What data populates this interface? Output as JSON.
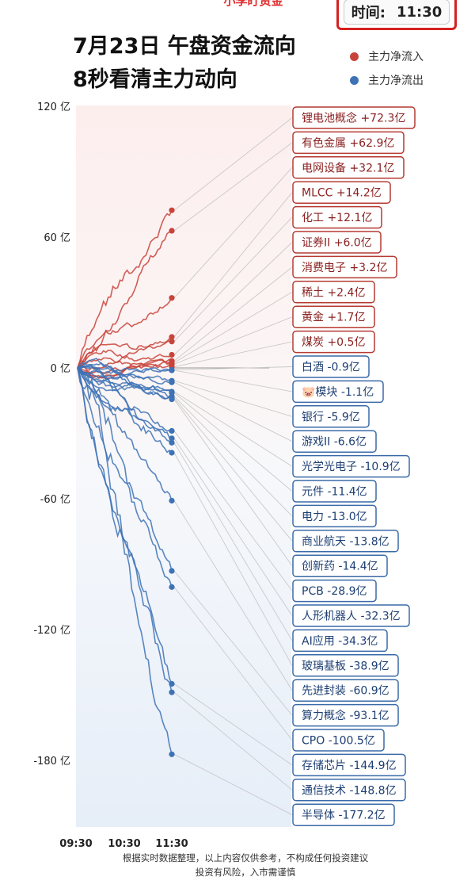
{
  "header": {
    "top_title": "小李盯资金",
    "time_label": "时间:",
    "time_value": "11:30",
    "title_line1": "7月23日 午盘资金流向",
    "title_line2": "8秒看清主力动向"
  },
  "legend": {
    "inflow_label": "主力净流入",
    "outflow_label": "主力净流出",
    "inflow_color": "#c8433a",
    "outflow_color": "#3d72b5"
  },
  "footnote": {
    "line1": "根据实时数据整理，以上内容仅供参考，不构成任何投资建议",
    "line2": "投资有风险，入市需谨慎"
  },
  "chart_data": {
    "type": "line",
    "unit": "亿",
    "x_ticks": [
      "09:30",
      "10:30",
      "11:30"
    ],
    "y_ticks": [
      "120 亿",
      "60 亿",
      "0 亿",
      "-60 亿",
      "-120 亿",
      "-180 亿"
    ],
    "ylim": [
      -180,
      120
    ],
    "series": [
      {
        "name": "锂电池概念",
        "value": 72.3,
        "label": "锂电池概念 +72.3亿"
      },
      {
        "name": "有色金属",
        "value": 62.9,
        "label": "有色金属 +62.9亿"
      },
      {
        "name": "电网设备",
        "value": 32.1,
        "label": "电网设备 +32.1亿"
      },
      {
        "name": "MLCC",
        "value": 14.2,
        "label": "MLCC +14.2亿"
      },
      {
        "name": "化工",
        "value": 12.1,
        "label": "化工 +12.1亿"
      },
      {
        "name": "证券II",
        "value": 6.0,
        "label": "证券II +6.0亿"
      },
      {
        "name": "消费电子",
        "value": 3.2,
        "label": "消费电子 +3.2亿"
      },
      {
        "name": "稀土",
        "value": 2.4,
        "label": "稀土 +2.4亿"
      },
      {
        "name": "黄金",
        "value": 1.7,
        "label": "黄金 +1.7亿"
      },
      {
        "name": "煤炭",
        "value": 0.5,
        "label": "煤炭 +0.5亿"
      },
      {
        "name": "白酒",
        "value": -0.9,
        "label": "白酒 -0.9亿"
      },
      {
        "name": "模块",
        "value": -1.1,
        "label": "🐷模块 -1.1亿"
      },
      {
        "name": "银行",
        "value": -5.9,
        "label": "银行 -5.9亿"
      },
      {
        "name": "游戏II",
        "value": -6.6,
        "label": "游戏II -6.6亿"
      },
      {
        "name": "光学光电子",
        "value": -10.9,
        "label": "光学光电子 -10.9亿"
      },
      {
        "name": "元件",
        "value": -11.4,
        "label": "元件 -11.4亿"
      },
      {
        "name": "电力",
        "value": -13.0,
        "label": "电力 -13.0亿"
      },
      {
        "name": "商业航天",
        "value": -13.8,
        "label": "商业航天 -13.8亿"
      },
      {
        "name": "创新药",
        "value": -14.4,
        "label": "创新药 -14.4亿"
      },
      {
        "name": "PCB",
        "value": -28.9,
        "label": "PCB -28.9亿"
      },
      {
        "name": "人形机器人",
        "value": -32.3,
        "label": "人形机器人 -32.3亿"
      },
      {
        "name": "AI应用",
        "value": -34.3,
        "label": "AI应用 -34.3亿"
      },
      {
        "name": "玻璃基板",
        "value": -38.9,
        "label": "玻璃基板 -38.9亿"
      },
      {
        "name": "先进封装",
        "value": -60.9,
        "label": "先进封装 -60.9亿"
      },
      {
        "name": "算力概念",
        "value": -93.1,
        "label": "算力概念 -93.1亿"
      },
      {
        "name": "CPO",
        "value": -100.5,
        "label": "CPO -100.5亿"
      },
      {
        "name": "存储芯片",
        "value": -144.9,
        "label": "存储芯片 -144.9亿"
      },
      {
        "name": "通信技术",
        "value": -148.8,
        "label": "通信技术 -148.8亿"
      },
      {
        "name": "半导体",
        "value": -177.2,
        "label": "半导体 -177.2亿"
      }
    ]
  }
}
